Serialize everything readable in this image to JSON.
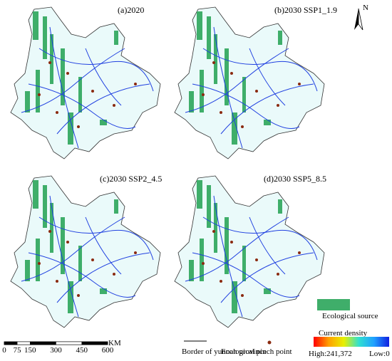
{
  "panels": [
    {
      "title": "(a)2020"
    },
    {
      "title": "(b)2030 SSP1_1.9"
    },
    {
      "title": "(c)2030 SSP2_4.5"
    },
    {
      "title": "(d)2030 SSP5_8.5"
    }
  ],
  "north": "N",
  "legend": {
    "source": "Ecological source",
    "density_title": "Current density",
    "high": "High:241,372",
    "low": "Low:0",
    "border": "Border of yunnan province",
    "pinch": "Ecological pinch point"
  },
  "scale": {
    "ticks": [
      0,
      75,
      150,
      300,
      450,
      600
    ],
    "unit": "KM"
  }
}
